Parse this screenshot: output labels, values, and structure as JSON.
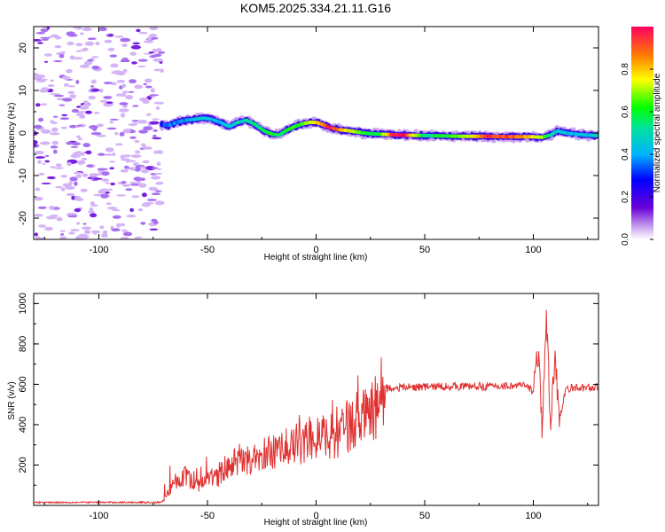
{
  "title": "KOM5.2025.334.21.11.G16",
  "chart_data": [
    {
      "type": "heatmap",
      "name": "spectrogram",
      "xlabel": "Height of straight line (km)",
      "ylabel": "Frequency (Hz)",
      "xlim": [
        -130,
        130
      ],
      "ylim": [
        -25,
        25
      ],
      "xticks": [
        -100,
        -50,
        0,
        50,
        100
      ],
      "yticks": [
        -20,
        -10,
        0,
        10,
        20
      ],
      "xtick_labels": [
        "-100",
        "-50",
        "0",
        "50",
        "100"
      ],
      "ytick_labels": [
        "-20",
        "-10",
        "0",
        "10",
        "20"
      ],
      "colorbar": {
        "label": "Normalized spectral amplitude",
        "range": [
          0,
          1
        ],
        "ticks": [
          0.0,
          0.2,
          0.4,
          0.6,
          0.8
        ],
        "tick_labels": [
          "0.0",
          "0.2",
          "0.4",
          "0.6",
          "0.8"
        ]
      },
      "noise_region_km": [
        -130,
        -71
      ],
      "ridge": {
        "x_km": [
          -71,
          -68,
          -64,
          -60,
          -56,
          -52,
          -48,
          -44,
          -40,
          -36,
          -32,
          -28,
          -24,
          -20,
          -17,
          -14,
          -10,
          -6,
          -3,
          0,
          3,
          6,
          10,
          14,
          18,
          22,
          26,
          30,
          35,
          40,
          50,
          60,
          70,
          80,
          90,
          100,
          104,
          108,
          111,
          115,
          120,
          125,
          130
        ],
        "freq_hz": [
          2.0,
          1.8,
          2.5,
          3.0,
          3.2,
          3.5,
          3.2,
          2.5,
          1.5,
          2.5,
          3.0,
          2.0,
          0.5,
          -0.3,
          -0.5,
          0.5,
          1.5,
          2.2,
          2.5,
          2.5,
          2.0,
          1.3,
          0.8,
          0.6,
          0.3,
          0.0,
          -0.2,
          -0.3,
          -0.4,
          -0.5,
          -0.6,
          -0.7,
          -0.8,
          -0.8,
          -0.9,
          -0.9,
          -1.0,
          -0.5,
          0.5,
          0.0,
          -0.3,
          -0.5,
          -0.6
        ],
        "amplitude": [
          0.3,
          0.35,
          0.38,
          0.4,
          0.42,
          0.45,
          0.42,
          0.4,
          0.45,
          0.5,
          0.5,
          0.52,
          0.55,
          0.6,
          0.55,
          0.6,
          0.62,
          0.65,
          0.7,
          0.75,
          0.85,
          0.95,
          0.9,
          0.75,
          0.7,
          0.6,
          0.55,
          0.6,
          0.95,
          0.98,
          0.55,
          0.6,
          0.7,
          0.95,
          0.9,
          0.8,
          0.7,
          0.5,
          0.45,
          0.45,
          0.42,
          0.45,
          0.45
        ]
      }
    },
    {
      "type": "line",
      "name": "snr",
      "xlabel": "Height of straight line (km)",
      "ylabel": "SNR (v/v)",
      "xlim": [
        -130,
        130
      ],
      "ylim": [
        0,
        1050
      ],
      "xticks": [
        -100,
        -50,
        0,
        50,
        100
      ],
      "yticks": [
        200,
        400,
        600,
        800,
        1000
      ],
      "xtick_labels": [
        "-100",
        "-50",
        "0",
        "50",
        "100"
      ],
      "ytick_labels": [
        "200",
        "400",
        "600",
        "800",
        "1000"
      ],
      "series": [
        {
          "name": "SNR",
          "color": "#e03030",
          "envelope": {
            "x_km": [
              -130,
              -71,
              -68,
              -65,
              -60,
              -55,
              -50,
              -45,
              -40,
              -35,
              -30,
              -25,
              -20,
              -15,
              -10,
              -5,
              0,
              5,
              10,
              15,
              20,
              25,
              28,
              30,
              32,
              40,
              60,
              80,
              95,
              100,
              102,
              104,
              106,
              108,
              110,
              112,
              115,
              130
            ],
            "snr": [
              15,
              15,
              60,
              120,
              150,
              90,
              140,
              140,
              190,
              230,
              230,
              250,
              260,
              280,
              300,
              310,
              330,
              340,
              360,
              400,
              430,
              450,
              490,
              590,
              580,
              585,
              590,
              590,
              595,
              570,
              770,
              400,
              900,
              380,
              800,
              400,
              580,
              585
            ]
          }
        }
      ]
    }
  ]
}
